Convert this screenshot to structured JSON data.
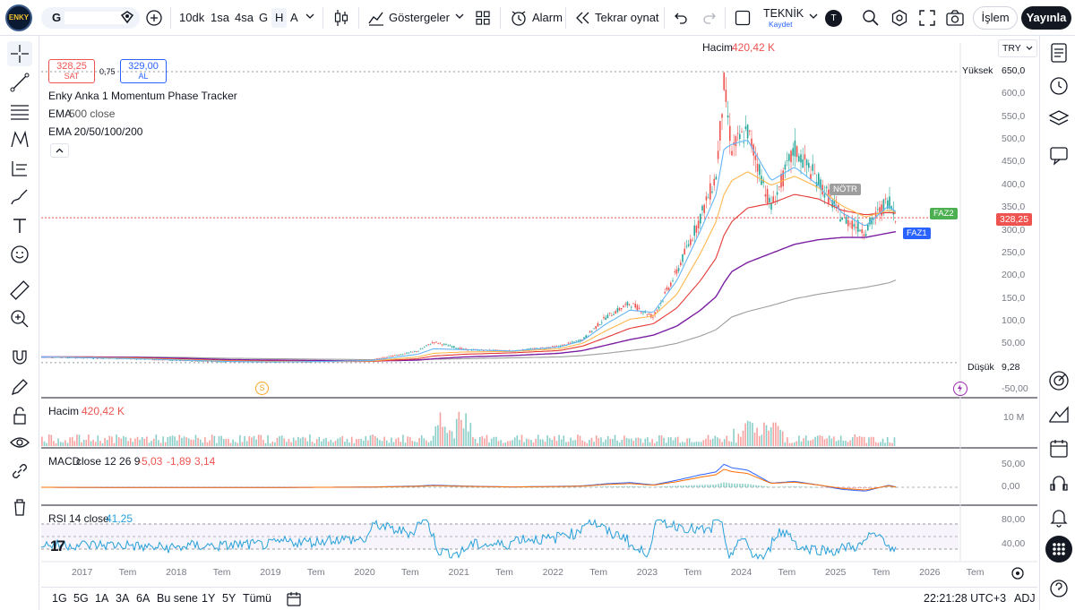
{
  "colors": {
    "up": "#26a69a",
    "down": "#ef5350",
    "price_line": "#ef5350",
    "ema20": "#64b5f6",
    "ema50": "#ffb74d",
    "ema100": "#e53935",
    "ema200": "#7b1fa2",
    "ema500": "#9e9e9e",
    "macd": "#2962ff",
    "signal": "#ff6d00",
    "rsi": "#26a0da",
    "accent": "#2962ff"
  },
  "toolbar": {
    "symbol": "G",
    "intervals": [
      "10dk",
      "1sa",
      "4sa",
      "G",
      "H",
      "A"
    ],
    "indicators_label": "Göstergeler",
    "alarm_label": "Alarm",
    "replay_label": "Tekrar oynat",
    "layout_name": "TEKNİK",
    "layout_status": "Kaydet",
    "user_initial": "T",
    "trade_label": "İşlem",
    "publish_label": "Yayınla"
  },
  "legend": {
    "volume_title": "Hacim",
    "volume_value": "420,42 K",
    "sell_price": "328,25",
    "sell_label": "SAT",
    "spread": "0,75",
    "buy_price": "329,00",
    "buy_label": "AL",
    "indicator1": "Enky Anka 1 Momentum Phase Tracker",
    "indicator2_name": "EMA",
    "indicator2_params": "500 close",
    "indicator3": "EMA 20/50/100/200"
  },
  "currency": "TRY",
  "price_axis": {
    "ticks": [
      "600,0",
      "550,0",
      "500,0",
      "450,0",
      "400,0",
      "350,0",
      "300,0",
      "250,0",
      "200,0",
      "150,0",
      "100,0",
      "50,00",
      "-50,00"
    ],
    "high_label": "Yüksek",
    "high_value": "650,0",
    "low_label": "Düşük",
    "low_value": "9,28",
    "last_price": "328,25"
  },
  "markers": {
    "notr": "NÖTR",
    "faz1": "FAZ1",
    "faz2": "FAZ2",
    "s_icon": "S"
  },
  "volume_pane": {
    "title": "Hacim",
    "value": "420,42 K",
    "axis": "10 M"
  },
  "macd_pane": {
    "title": "MACD",
    "params": "close 12 26 9",
    "v1": "-5,03",
    "v2": "-1,89",
    "v3": "3,14",
    "axis_top": "50,00",
    "axis_zero": "0,00"
  },
  "rsi_pane": {
    "title": "RSI",
    "params": "14 close",
    "value": "41,25",
    "axis_top": "80,00",
    "axis_mid": "40,00"
  },
  "time_axis": [
    "2017",
    "Tem",
    "2018",
    "Tem",
    "2019",
    "Tem",
    "2020",
    "Tem",
    "2021",
    "Tem",
    "2022",
    "Tem",
    "2023",
    "Tem",
    "2024",
    "Tem",
    "2025",
    "Tem",
    "2026",
    "Tem"
  ],
  "bottom": {
    "ranges": [
      "1G",
      "5G",
      "1A",
      "3A",
      "6A",
      "Bu sene",
      "1Y",
      "5Y",
      "Tümü"
    ],
    "clock": "22:21:28 UTC+3",
    "adj": "ADJ"
  },
  "chart_data": {
    "type": "candlestick",
    "x": [
      "2017-01",
      "2017-07",
      "2018-01",
      "2018-07",
      "2019-01",
      "2019-07",
      "2020-01",
      "2020-07",
      "2021-01",
      "2021-03",
      "2021-07",
      "2022-01",
      "2022-07",
      "2022-10",
      "2023-01",
      "2023-04",
      "2023-07",
      "2023-10",
      "2024-01",
      "2024-03",
      "2024-04",
      "2024-05",
      "2024-07",
      "2024-10",
      "2025-01",
      "2025-04",
      "2025-07",
      "2025-10",
      "2026-01",
      "2026-02"
    ],
    "close": [
      22,
      20,
      18,
      14,
      12,
      11,
      12,
      15,
      35,
      55,
      38,
      35,
      45,
      60,
      110,
      140,
      110,
      210,
      330,
      420,
      620,
      480,
      520,
      350,
      480,
      410,
      330,
      300,
      370,
      328
    ],
    "ema20": [
      22,
      20,
      18,
      15,
      12,
      11,
      12,
      14,
      28,
      40,
      38,
      35,
      44,
      58,
      95,
      125,
      120,
      190,
      300,
      380,
      480,
      490,
      500,
      410,
      440,
      400,
      340,
      310,
      355,
      340
    ],
    "ema50": [
      22,
      21,
      19,
      16,
      13,
      12,
      12,
      13,
      22,
      30,
      33,
      34,
      40,
      52,
      80,
      105,
      112,
      160,
      250,
      320,
      380,
      410,
      430,
      400,
      420,
      395,
      355,
      330,
      345,
      340
    ],
    "ema100": [
      22,
      21,
      20,
      17,
      14,
      13,
      12,
      12,
      18,
      24,
      28,
      31,
      36,
      46,
      65,
      85,
      95,
      130,
      190,
      240,
      290,
      320,
      350,
      360,
      380,
      370,
      345,
      335,
      340,
      338
    ],
    "ema200": [
      22,
      22,
      21,
      19,
      16,
      15,
      14,
      13,
      15,
      18,
      22,
      25,
      30,
      36,
      48,
      60,
      70,
      90,
      125,
      155,
      185,
      210,
      230,
      250,
      270,
      280,
      285,
      285,
      295,
      298
    ],
    "ema500": [
      22,
      22,
      22,
      21,
      19,
      18,
      17,
      16,
      16,
      17,
      18,
      20,
      22,
      25,
      30,
      36,
      42,
      52,
      68,
      82,
      96,
      110,
      122,
      135,
      150,
      160,
      168,
      175,
      185,
      192
    ],
    "ylim": [
      -50,
      650
    ],
    "high": 650.0,
    "low": 9.28,
    "last": 328.25
  }
}
